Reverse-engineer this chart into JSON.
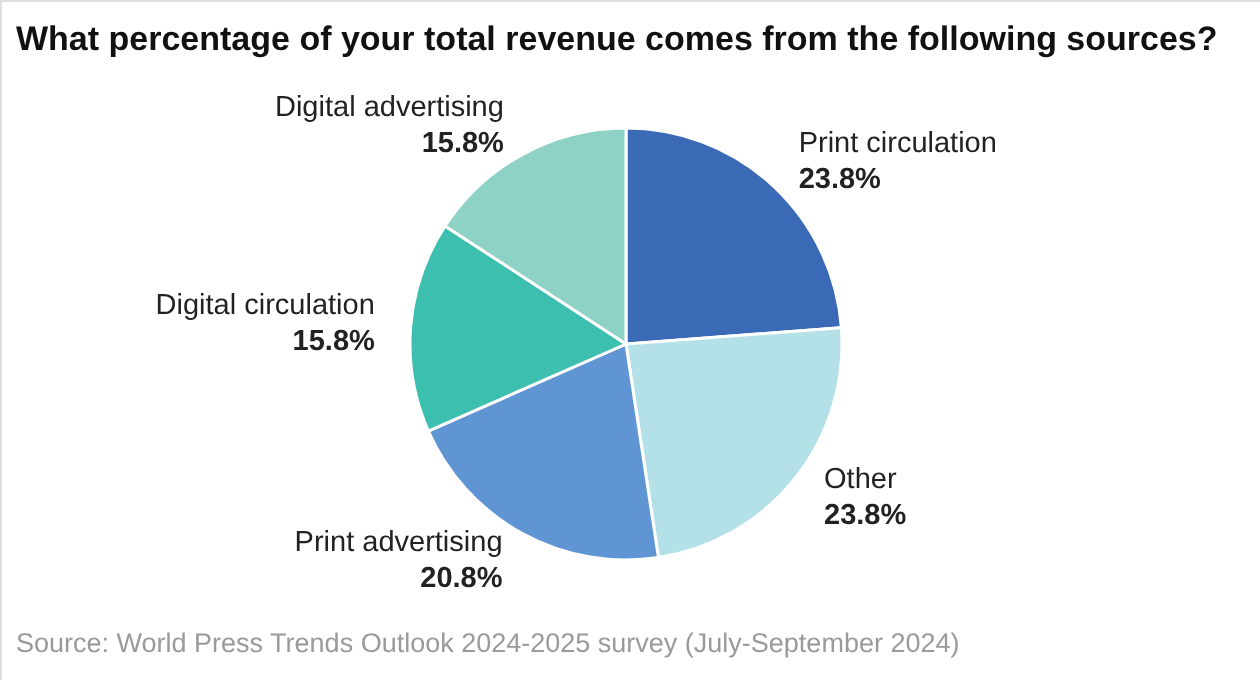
{
  "chart_data": {
    "type": "pie",
    "title": "What percentage of your total revenue comes from the following sources?",
    "categories": [
      "Print circulation",
      "Other",
      "Print advertising",
      "Digital circulation",
      "Digital advertising"
    ],
    "values": [
      23.8,
      23.8,
      20.8,
      15.8,
      15.8
    ],
    "value_labels": [
      "23.8%",
      "23.8%",
      "20.8%",
      "15.8%",
      "15.8%"
    ],
    "colors": [
      "#3a69b6",
      "#b3e1e7",
      "#6095d4",
      "#3cbfae",
      "#8dd2c5"
    ],
    "annotations": [
      "Source: World Press Trends Outlook 2024-2025 survey (July-September 2024)"
    ]
  }
}
